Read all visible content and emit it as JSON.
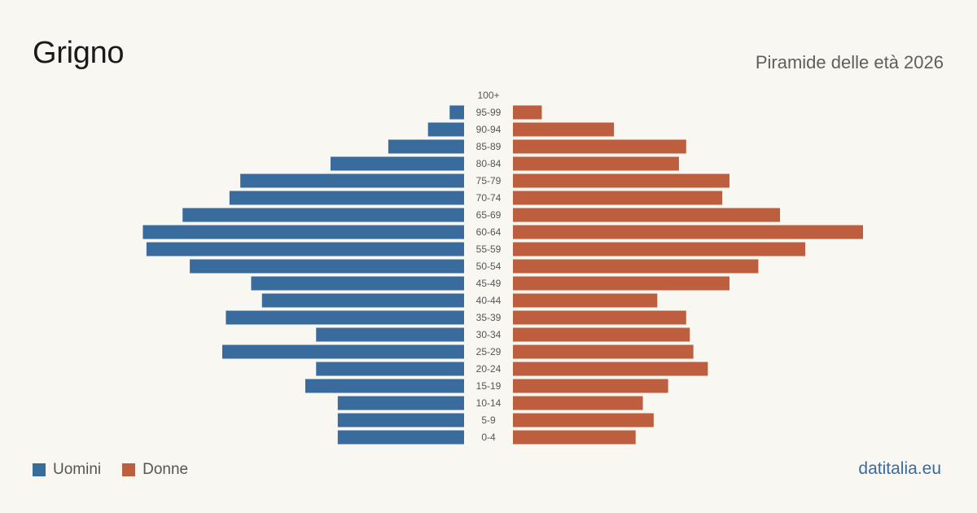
{
  "header": {
    "title": "Grigno",
    "subtitle": "Piramide delle età 2026"
  },
  "footer": {
    "source": "datitalia.eu"
  },
  "colors": {
    "male": "#3a6b9d",
    "female": "#bd5f3e",
    "background": "#f9f7f2"
  },
  "chart_data": {
    "type": "bar",
    "orientation": "horizontal",
    "layout": "population-pyramid",
    "categories": [
      "100+",
      "95-99",
      "90-94",
      "85-89",
      "80-84",
      "75-79",
      "70-74",
      "65-69",
      "60-64",
      "55-59",
      "50-54",
      "45-49",
      "40-44",
      "35-39",
      "30-34",
      "25-29",
      "20-24",
      "15-19",
      "10-14",
      "5-9",
      "0-4"
    ],
    "series": [
      {
        "name": "Uomini",
        "values": [
          0,
          4,
          10,
          21,
          37,
          62,
          65,
          78,
          89,
          88,
          76,
          59,
          56,
          66,
          41,
          67,
          41,
          44,
          35,
          35,
          35
        ]
      },
      {
        "name": "Donne",
        "values": [
          0,
          8,
          28,
          48,
          46,
          60,
          58,
          74,
          97,
          81,
          68,
          60,
          40,
          48,
          49,
          50,
          54,
          43,
          36,
          39,
          34
        ]
      }
    ],
    "legend": {
      "placement": "bottom-left",
      "entries": [
        "Uomini",
        "Donne"
      ]
    },
    "grid": false
  }
}
